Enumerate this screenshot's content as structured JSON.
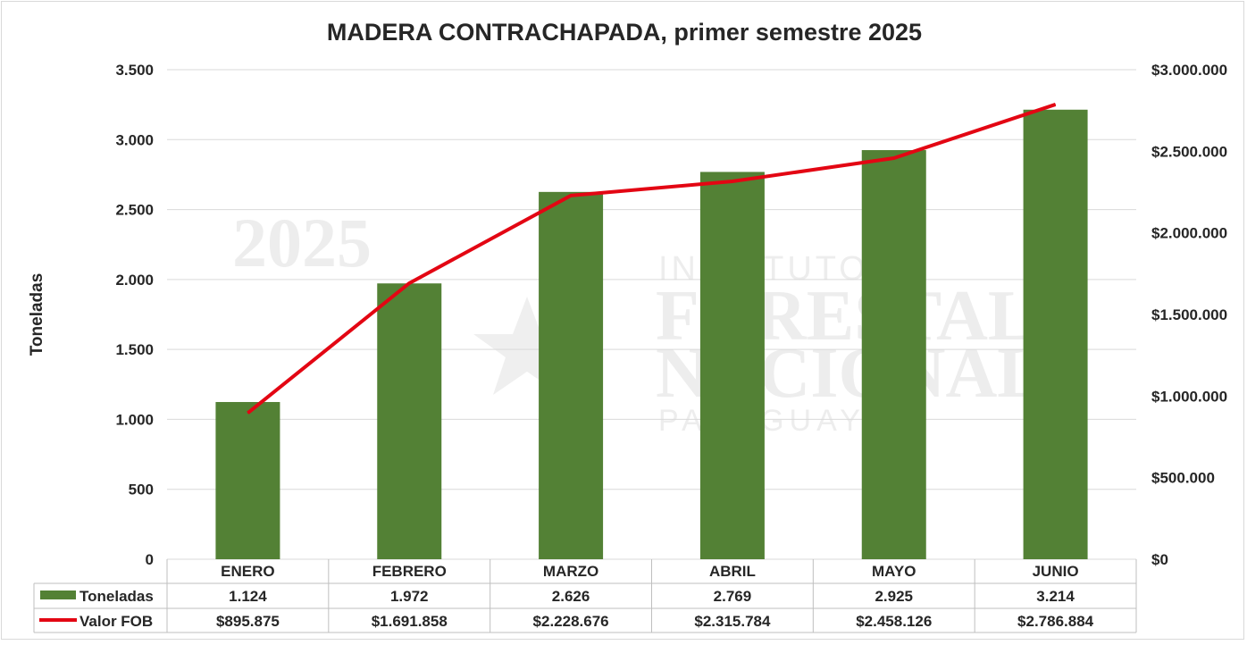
{
  "chart_data": {
    "type": "bar+line",
    "title": "MADERA CONTRACHAPADA,  primer semestre 2025",
    "ylabel": "Toneladas",
    "categories": [
      "ENERO",
      "FEBRERO",
      "MARZO",
      "ABRIL",
      "MAYO",
      "JUNIO"
    ],
    "y_left": {
      "lim": [
        0,
        3500
      ],
      "ticks": [
        0,
        500,
        1000,
        1500,
        2000,
        2500,
        3000,
        3500
      ],
      "tick_labels": [
        "0",
        "500",
        "1.000",
        "1.500",
        "2.000",
        "2.500",
        "3.000",
        "3.500"
      ]
    },
    "y_right": {
      "lim": [
        0,
        3000000
      ],
      "ticks": [
        0,
        500000,
        1000000,
        1500000,
        2000000,
        2500000,
        3000000
      ],
      "tick_labels": [
        "$0",
        "$500.000",
        "$1.000.000",
        "$1.500.000",
        "$2.000.000",
        "$2.500.000",
        "$3.000.000"
      ]
    },
    "series": [
      {
        "name": "Toneladas",
        "type": "bar",
        "axis": "left",
        "color": "#538135",
        "values": [
          1124,
          1972,
          2626,
          2769,
          2925,
          3214
        ],
        "labels": [
          "1.124",
          "1.972",
          "2.626",
          "2.769",
          "2.925",
          "3.214"
        ]
      },
      {
        "name": "Valor FOB",
        "type": "line",
        "axis": "right",
        "color": "#e30613",
        "values": [
          895875,
          1691858,
          2228676,
          2315784,
          2458126,
          2786884
        ],
        "labels": [
          "$895.875",
          "$1.691.858",
          "$2.228.676",
          "$2.315.784",
          "$2.458.126",
          "$2.786.884"
        ]
      }
    ],
    "grid": true,
    "legend": "data-table"
  },
  "watermark": {
    "year": "2025",
    "line1": "INSTITUTO",
    "line2": "FORESTAL",
    "line3": "NACIONAL",
    "line4": "PARAGUAY"
  }
}
